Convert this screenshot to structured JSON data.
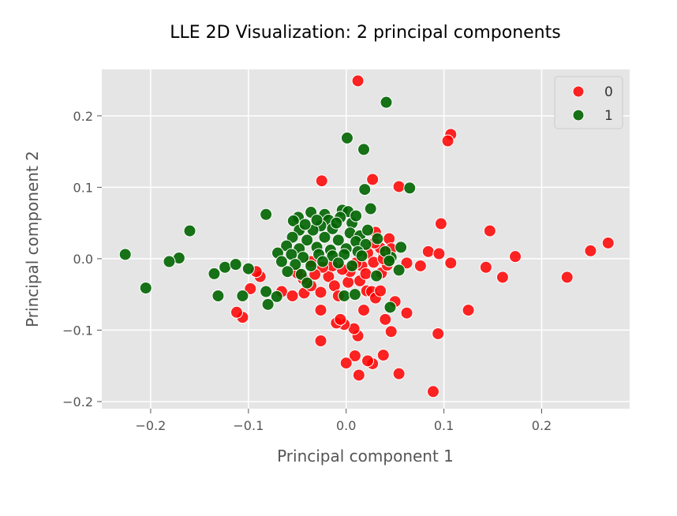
{
  "chart_data": {
    "type": "scatter",
    "title": "LLE 2D Visualization: 2 principal components",
    "xlabel": "Principal component 1",
    "ylabel": "Principal component 2",
    "xlim": [
      -0.25,
      0.29
    ],
    "ylim": [
      -0.21,
      0.265
    ],
    "xticks": [
      -0.2,
      -0.1,
      0.0,
      0.1,
      0.2
    ],
    "xtick_labels": [
      "−0.2",
      "−0.1",
      "0.0",
      "0.1",
      "0.2"
    ],
    "yticks": [
      -0.2,
      -0.1,
      0.0,
      0.1,
      0.2
    ],
    "ytick_labels": [
      "−0.2",
      "−0.1",
      "0.0",
      "0.1",
      "0.2"
    ],
    "grid": true,
    "legend_position": "top-right",
    "colors": {
      "background": "#e5e5e5",
      "grid": "#ffffff",
      "point_edge": "#ffffff"
    },
    "series": [
      {
        "name": "0",
        "color": "#ff0000",
        "points": [
          [
            0.012,
            0.249
          ],
          [
            0.107,
            0.174
          ],
          [
            0.104,
            0.165
          ],
          [
            -0.025,
            0.109
          ],
          [
            0.027,
            0.111
          ],
          [
            0.054,
            0.101
          ],
          [
            0.097,
            0.049
          ],
          [
            0.147,
            0.039
          ],
          [
            0.084,
            0.01
          ],
          [
            0.095,
            0.007
          ],
          [
            0.173,
            0.003
          ],
          [
            0.268,
            0.022
          ],
          [
            0.25,
            0.011
          ],
          [
            0.107,
            -0.006
          ],
          [
            0.143,
            -0.012
          ],
          [
            0.16,
            -0.026
          ],
          [
            0.226,
            -0.026
          ],
          [
            0.076,
            -0.01
          ],
          [
            0.062,
            -0.006
          ],
          [
            0.125,
            -0.072
          ],
          [
            0.094,
            -0.105
          ],
          [
            0.089,
            -0.186
          ],
          [
            0.054,
            -0.161
          ],
          [
            0.062,
            -0.076
          ],
          [
            0.05,
            -0.06
          ],
          [
            0.046,
            -0.102
          ],
          [
            0.04,
            -0.085
          ],
          [
            0.038,
            -0.135
          ],
          [
            0.027,
            -0.147
          ],
          [
            0.022,
            -0.143
          ],
          [
            0.013,
            -0.163
          ],
          [
            0.009,
            -0.136
          ],
          [
            0.0,
            -0.146
          ],
          [
            0.012,
            -0.108
          ],
          [
            0.008,
            -0.098
          ],
          [
            -0.002,
            -0.092
          ],
          [
            -0.01,
            -0.09
          ],
          [
            -0.006,
            -0.085
          ],
          [
            -0.026,
            -0.115
          ],
          [
            -0.026,
            -0.072
          ],
          [
            -0.106,
            -0.082
          ],
          [
            -0.112,
            -0.075
          ],
          [
            -0.098,
            -0.042
          ],
          [
            -0.088,
            -0.025
          ],
          [
            -0.092,
            -0.018
          ],
          [
            -0.066,
            -0.046
          ],
          [
            -0.055,
            -0.052
          ],
          [
            -0.043,
            -0.048
          ],
          [
            -0.036,
            -0.038
          ],
          [
            -0.026,
            -0.047
          ],
          [
            -0.018,
            -0.025
          ],
          [
            -0.012,
            -0.038
          ],
          [
            -0.008,
            -0.052
          ],
          [
            0.002,
            -0.033
          ],
          [
            0.014,
            -0.031
          ],
          [
            0.021,
            -0.045
          ],
          [
            0.026,
            -0.046
          ],
          [
            0.018,
            -0.072
          ],
          [
            0.03,
            -0.055
          ],
          [
            0.035,
            -0.045
          ],
          [
            0.036,
            -0.02
          ],
          [
            0.042,
            -0.009
          ],
          [
            0.038,
            0.008
          ],
          [
            0.035,
            0.015
          ],
          [
            0.029,
            0.022
          ],
          [
            0.044,
            0.028
          ],
          [
            0.03,
            0.037
          ],
          [
            0.046,
            0.014
          ],
          [
            0.022,
            0.008
          ],
          [
            0.028,
            -0.005
          ],
          [
            0.016,
            -0.01
          ],
          [
            0.01,
            -0.006
          ],
          [
            0.004,
            -0.018
          ],
          [
            -0.004,
            -0.015
          ],
          [
            -0.014,
            -0.01
          ],
          [
            -0.024,
            -0.012
          ],
          [
            -0.032,
            -0.022
          ],
          [
            -0.044,
            -0.028
          ],
          [
            -0.05,
            -0.02
          ],
          [
            -0.036,
            -0.004
          ],
          [
            0.038,
            0.0
          ],
          [
            0.02,
            -0.021
          ]
        ]
      },
      {
        "name": "1",
        "color": "#006400",
        "points": [
          [
            0.041,
            0.219
          ],
          [
            0.001,
            0.169
          ],
          [
            0.018,
            0.153
          ],
          [
            0.019,
            0.097
          ],
          [
            0.065,
            0.099
          ],
          [
            0.025,
            0.07
          ],
          [
            -0.082,
            0.062
          ],
          [
            -0.036,
            0.065
          ],
          [
            -0.049,
            0.058
          ],
          [
            -0.054,
            0.053
          ],
          [
            -0.022,
            0.062
          ],
          [
            -0.004,
            0.068
          ],
          [
            0.002,
            0.066
          ],
          [
            -0.018,
            0.054
          ],
          [
            -0.006,
            0.058
          ],
          [
            0.006,
            0.05
          ],
          [
            -0.026,
            0.046
          ],
          [
            -0.048,
            0.04
          ],
          [
            -0.034,
            0.04
          ],
          [
            -0.014,
            0.042
          ],
          [
            0.004,
            0.036
          ],
          [
            0.014,
            0.032
          ],
          [
            -0.055,
            0.03
          ],
          [
            -0.04,
            0.026
          ],
          [
            -0.022,
            0.03
          ],
          [
            -0.008,
            0.026
          ],
          [
            0.01,
            0.024
          ],
          [
            0.02,
            0.02
          ],
          [
            -0.061,
            0.018
          ],
          [
            -0.048,
            0.014
          ],
          [
            -0.03,
            0.016
          ],
          [
            -0.016,
            0.012
          ],
          [
            0.0,
            0.014
          ],
          [
            0.012,
            0.01
          ],
          [
            -0.07,
            0.008
          ],
          [
            -0.056,
            0.006
          ],
          [
            -0.044,
            0.002
          ],
          [
            -0.028,
            0.006
          ],
          [
            -0.014,
            0.004
          ],
          [
            -0.002,
            0.006
          ],
          [
            0.016,
            0.004
          ],
          [
            -0.066,
            -0.004
          ],
          [
            -0.052,
            -0.008
          ],
          [
            -0.036,
            -0.01
          ],
          [
            -0.024,
            -0.004
          ],
          [
            -0.008,
            -0.006
          ],
          [
            0.006,
            -0.01
          ],
          [
            -0.06,
            -0.018
          ],
          [
            -0.046,
            -0.022
          ],
          [
            0.022,
            0.04
          ],
          [
            0.032,
            0.028
          ],
          [
            -0.16,
            0.039
          ],
          [
            -0.226,
            0.006
          ],
          [
            -0.171,
            0.001
          ],
          [
            -0.181,
            -0.004
          ],
          [
            -0.205,
            -0.041
          ],
          [
            -0.135,
            -0.021
          ],
          [
            -0.124,
            -0.012
          ],
          [
            -0.113,
            -0.008
          ],
          [
            -0.1,
            -0.014
          ],
          [
            -0.106,
            -0.052
          ],
          [
            -0.131,
            -0.052
          ],
          [
            -0.082,
            -0.046
          ],
          [
            -0.071,
            -0.053
          ],
          [
            -0.08,
            -0.064
          ],
          [
            -0.002,
            -0.052
          ],
          [
            0.009,
            -0.05
          ],
          [
            0.045,
            -0.068
          ],
          [
            0.054,
            -0.016
          ],
          [
            0.046,
            0.002
          ],
          [
            0.056,
            0.016
          ],
          [
            0.04,
            0.01
          ],
          [
            0.044,
            -0.003
          ],
          [
            0.031,
            -0.024
          ],
          [
            -0.04,
            -0.034
          ],
          [
            -0.01,
            0.05
          ],
          [
            0.01,
            0.06
          ],
          [
            -0.03,
            0.054
          ],
          [
            -0.042,
            0.048
          ]
        ]
      }
    ]
  }
}
